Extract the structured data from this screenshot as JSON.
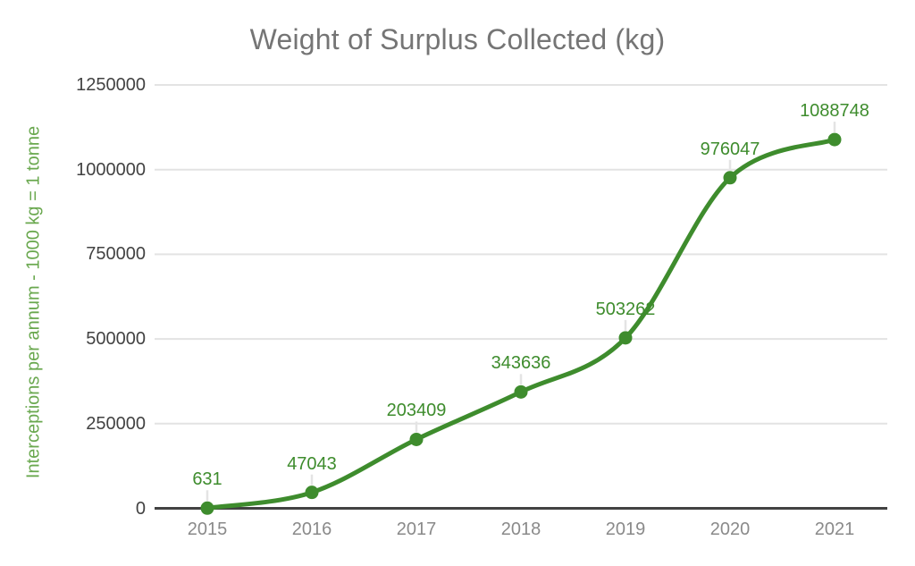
{
  "chart_data": {
    "type": "line",
    "title": "Weight of Surplus Collected (kg)",
    "xlabel": "",
    "ylabel": "Interceptions per annum - 1000 kg = 1 tonne",
    "categories": [
      "2015",
      "2016",
      "2017",
      "2018",
      "2019",
      "2020",
      "2021"
    ],
    "series": [
      {
        "name": "Weight of Surplus Collected (kg)",
        "values": [
          631,
          47043,
          203409,
          343636,
          503262,
          976047,
          1088748
        ]
      }
    ],
    "point_labels": [
      "631",
      "47043",
      "203409",
      "343636",
      "503262",
      "976047",
      "1088748"
    ],
    "y_ticks": [
      0,
      250000,
      500000,
      750000,
      1000000,
      1250000
    ],
    "ylim": [
      0,
      1250000
    ],
    "grid": true,
    "legend_position": "none",
    "line_style": "smooth"
  },
  "colors": {
    "series_line": "#3e8c2d",
    "marker": "#3e8c2d",
    "point_label": "#3e8c2d",
    "axis_title_green": "#6aa84f",
    "title_gray": "#757575",
    "y_tick_label": "#424242",
    "x_tick_label": "#8a8a8a",
    "gridline": "#e3e3e3",
    "axis_line": "#424242",
    "leader_line": "#e4e4e4",
    "background": "#ffffff"
  }
}
